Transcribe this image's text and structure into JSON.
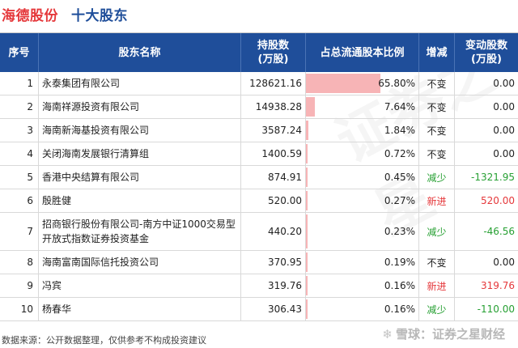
{
  "header": {
    "company": "海德股份",
    "subtitle": "十大股东"
  },
  "table": {
    "columns": {
      "no": "序号",
      "name": "股东名称",
      "holding": "持股数\n(万股)",
      "ratio": "占总流通股本比例",
      "change": "增减",
      "delta": "变动股数\n(万股)"
    },
    "rows": [
      {
        "no": "1",
        "name": "永泰集团有限公司",
        "holding": "128621.16",
        "ratio": "65.80%",
        "ratio_value": 65.8,
        "change": "不变",
        "change_type": "same",
        "delta": "0.00"
      },
      {
        "no": "2",
        "name": "海南祥源投资有限公司",
        "holding": "14938.28",
        "ratio": "7.64%",
        "ratio_value": 7.64,
        "change": "不变",
        "change_type": "same",
        "delta": "0.00"
      },
      {
        "no": "3",
        "name": "海南新海基投资有限公司",
        "holding": "3587.24",
        "ratio": "1.84%",
        "ratio_value": 1.84,
        "change": "不变",
        "change_type": "same",
        "delta": "0.00"
      },
      {
        "no": "4",
        "name": "关闭海南发展银行清算组",
        "holding": "1400.59",
        "ratio": "0.72%",
        "ratio_value": 0.72,
        "change": "不变",
        "change_type": "same",
        "delta": "0.00"
      },
      {
        "no": "5",
        "name": "香港中央结算有限公司",
        "holding": "874.91",
        "ratio": "0.45%",
        "ratio_value": 0.45,
        "change": "减少",
        "change_type": "down",
        "delta": "-1321.95"
      },
      {
        "no": "6",
        "name": "殷胜健",
        "holding": "520.00",
        "ratio": "0.27%",
        "ratio_value": 0.27,
        "change": "新进",
        "change_type": "up",
        "delta": "520.00"
      },
      {
        "no": "7",
        "name": "招商银行股份有限公司-南方中证1000交易型开放式指数证券投资基金",
        "holding": "440.20",
        "ratio": "0.23%",
        "ratio_value": 0.23,
        "change": "减少",
        "change_type": "down",
        "delta": "-46.56"
      },
      {
        "no": "8",
        "name": "海南富南国际信托投资公司",
        "holding": "370.95",
        "ratio": "0.19%",
        "ratio_value": 0.19,
        "change": "不变",
        "change_type": "same",
        "delta": "0.00"
      },
      {
        "no": "9",
        "name": "冯宾",
        "holding": "319.76",
        "ratio": "0.16%",
        "ratio_value": 0.16,
        "change": "新进",
        "change_type": "up",
        "delta": "319.76"
      },
      {
        "no": "10",
        "name": "杨春华",
        "holding": "306.43",
        "ratio": "0.16%",
        "ratio_value": 0.16,
        "change": "减少",
        "change_type": "down",
        "delta": "-110.00"
      }
    ]
  },
  "footer": {
    "source": "数据来源：公开数据整理，仅供参考不构成投资建议",
    "brand": "雪球：证券之星财经"
  },
  "colors": {
    "header_bg": "#1f4e9a",
    "company": "#e5383b",
    "bar": "#f7b4b6",
    "up": "#e5383b",
    "down": "#27a033"
  },
  "icons": {
    "brand_icon": "snowball-icon"
  }
}
